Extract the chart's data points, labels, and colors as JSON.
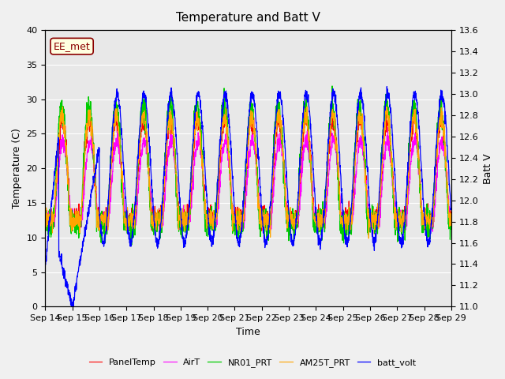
{
  "title": "Temperature and Batt V",
  "xlabel": "Time",
  "ylabel_left": "Temperature (C)",
  "ylabel_right": "Batt V",
  "ylim_left": [
    0,
    40
  ],
  "ylim_right": [
    11.0,
    13.6
  ],
  "x_tick_labels": [
    "Sep 14",
    "Sep 15",
    "Sep 16",
    "Sep 17",
    "Sep 18",
    "Sep 19",
    "Sep 20",
    "Sep 21",
    "Sep 22",
    "Sep 23",
    "Sep 24",
    "Sep 25",
    "Sep 26",
    "Sep 27",
    "Sep 28",
    "Sep 29"
  ],
  "annotation": "EE_met",
  "legend_entries": [
    "PanelTemp",
    "AirT",
    "NR01_PRT",
    "AM25T_PRT",
    "batt_volt"
  ],
  "legend_colors": [
    "#ff0000",
    "#ff00ff",
    "#00cc00",
    "#ffa500",
    "#0000ff"
  ],
  "background_color": "#e8e8e8",
  "grid_color": "#ffffff",
  "title_fontsize": 11,
  "label_fontsize": 9,
  "tick_fontsize": 8,
  "yticks_left": [
    0,
    5,
    10,
    15,
    20,
    25,
    30,
    35,
    40
  ],
  "yticks_right": [
    11.0,
    11.2,
    11.4,
    11.6,
    11.8,
    12.0,
    12.2,
    12.4,
    12.6,
    12.8,
    13.0,
    13.2,
    13.4,
    13.6
  ]
}
